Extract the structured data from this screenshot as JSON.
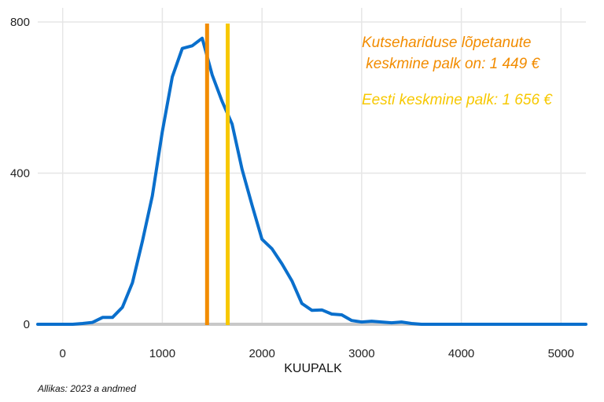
{
  "chart_data": {
    "type": "line",
    "title": "",
    "xlabel": "KUUPALK",
    "ylabel": "",
    "xlim": [
      -250,
      5250
    ],
    "ylim": [
      0,
      800
    ],
    "x_ticks": [
      0,
      1000,
      2000,
      3000,
      4000,
      5000
    ],
    "y_ticks": [
      0,
      400,
      800
    ],
    "grid": true,
    "colors": {
      "line": "#0a6fcc",
      "median_line": "#f28c00",
      "mean_line": "#f7c800",
      "baseline": "#c8c8c8",
      "grid": "#e6e6e6"
    },
    "series": [
      {
        "x": [
          -250,
          100,
          200,
          300,
          400,
          500,
          600,
          700,
          800,
          900,
          1000,
          1100,
          1200,
          1300,
          1400,
          1500,
          1600,
          1700,
          1800,
          1900,
          2000,
          2100,
          2200,
          2300,
          2400,
          2500,
          2600,
          2700,
          2800,
          2900,
          3000,
          3100,
          3200,
          3300,
          3400,
          3500,
          3600,
          5250
        ],
        "y": [
          0,
          0,
          2,
          5,
          18,
          18,
          45,
          110,
          220,
          340,
          510,
          655,
          730,
          737,
          757,
          660,
          590,
          530,
          410,
          315,
          225,
          200,
          160,
          115,
          55,
          37,
          38,
          27,
          25,
          10,
          6,
          8,
          6,
          4,
          6,
          2,
          0,
          0
        ]
      }
    ],
    "vlines": [
      {
        "x": 1449,
        "color": "#f28c00"
      },
      {
        "x": 1656,
        "color": "#f7c800"
      }
    ],
    "annotations": [
      {
        "lines": [
          "Kutsehariduse lõpetanute",
          " keskmine palk on: 1 449 €"
        ],
        "color": "#f28c00"
      },
      {
        "lines": [
          "Eesti keskmine palk: 1 656 €"
        ],
        "color": "#f7c800"
      }
    ]
  },
  "source": "Allikas: 2023 a andmed"
}
